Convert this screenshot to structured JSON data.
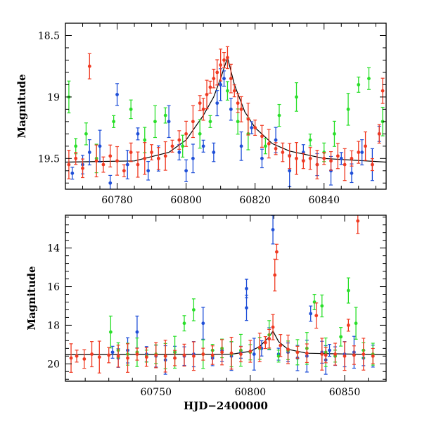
{
  "chart_data": [
    {
      "type": "scatter",
      "panel": "top",
      "title": "",
      "xlabel": "",
      "ylabel": "Magnitude",
      "xlim": [
        60765,
        60858
      ],
      "ylim": [
        18.4,
        19.75
      ],
      "y_inverted": true,
      "x_ticks": [
        60780,
        60800,
        60820,
        60840
      ],
      "y_ticks": [
        18.5,
        19,
        19.5
      ],
      "y_tick_labels": [
        "18.5",
        "19",
        "19.5"
      ],
      "grid": false,
      "legend": "none",
      "error_bars": true,
      "series": [
        {
          "color": "#1f4fd8",
          "points": [
            [
              60767,
              19.62
            ],
            [
              60770,
              19.55
            ],
            [
              60772,
              19.45
            ],
            [
              60775,
              19.4
            ],
            [
              60778,
              19.7
            ],
            [
              60780,
              18.98
            ],
            [
              60783,
              19.55
            ],
            [
              60786,
              19.3
            ],
            [
              60789,
              19.6
            ],
            [
              60792,
              19.5
            ],
            [
              60795,
              19.2
            ],
            [
              60798,
              19.45
            ],
            [
              60800,
              19.6
            ],
            [
              60802,
              19.5
            ],
            [
              60805,
              19.4
            ],
            [
              60808,
              19.45
            ],
            [
              60809,
              19.05
            ],
            [
              60810,
              18.9
            ],
            [
              60811,
              18.85
            ],
            [
              60813,
              19.1
            ],
            [
              60816,
              19.4
            ],
            [
              60819,
              19.25
            ],
            [
              60822,
              19.5
            ],
            [
              60826,
              19.35
            ],
            [
              60830,
              19.6
            ],
            [
              60834,
              19.45
            ],
            [
              60838,
              19.55
            ],
            [
              60842,
              19.6
            ],
            [
              60845,
              19.5
            ],
            [
              60848,
              19.62
            ],
            [
              60851,
              19.45
            ],
            [
              60854,
              19.55
            ],
            [
              60856,
              19.3
            ]
          ]
        },
        {
          "color": "#2adf2a",
          "points": [
            [
              60766,
              19.0
            ],
            [
              60768,
              19.4
            ],
            [
              60771,
              19.3
            ],
            [
              60774,
              19.5
            ],
            [
              60779,
              19.2
            ],
            [
              60784,
              19.1
            ],
            [
              60788,
              19.35
            ],
            [
              60791,
              19.2
            ],
            [
              60794,
              19.15
            ],
            [
              60799,
              19.4
            ],
            [
              60804,
              19.3
            ],
            [
              60807,
              19.2
            ],
            [
              60812,
              18.95
            ],
            [
              60815,
              19.2
            ],
            [
              60818,
              19.3
            ],
            [
              60823,
              19.4
            ],
            [
              60827,
              19.15
            ],
            [
              60832,
              19.0
            ],
            [
              60836,
              19.35
            ],
            [
              60840,
              19.45
            ],
            [
              60843,
              19.3
            ],
            [
              60847,
              19.1
            ],
            [
              60850,
              18.9
            ],
            [
              60853,
              18.85
            ],
            [
              60857,
              19.2
            ]
          ]
        },
        {
          "color": "#f03a22",
          "points": [
            [
              60766,
              19.55
            ],
            [
              60768,
              19.5
            ],
            [
              60770,
              19.58
            ],
            [
              60772,
              18.75
            ],
            [
              60774,
              19.52
            ],
            [
              60776,
              19.55
            ],
            [
              60778,
              19.48
            ],
            [
              60780,
              19.52
            ],
            [
              60782,
              19.6
            ],
            [
              60784,
              19.45
            ],
            [
              60786,
              19.55
            ],
            [
              60788,
              19.5
            ],
            [
              60790,
              19.45
            ],
            [
              60792,
              19.5
            ],
            [
              60794,
              19.48
            ],
            [
              60796,
              19.4
            ],
            [
              60798,
              19.35
            ],
            [
              60800,
              19.3
            ],
            [
              60802,
              19.2
            ],
            [
              60804,
              19.05
            ],
            [
              60805,
              19.1
            ],
            [
              60806,
              18.98
            ],
            [
              60807,
              18.92
            ],
            [
              60808,
              18.85
            ],
            [
              60809,
              18.8
            ],
            [
              60810,
              18.74
            ],
            [
              60811,
              18.7
            ],
            [
              60812,
              18.68
            ],
            [
              60813,
              18.85
            ],
            [
              60814,
              18.95
            ],
            [
              60815,
              19.05
            ],
            [
              60816,
              19.1
            ],
            [
              60818,
              19.18
            ],
            [
              60820,
              19.25
            ],
            [
              60822,
              19.32
            ],
            [
              60824,
              19.38
            ],
            [
              60826,
              19.42
            ],
            [
              60828,
              19.45
            ],
            [
              60830,
              19.48
            ],
            [
              60832,
              19.5
            ],
            [
              60834,
              19.52
            ],
            [
              60836,
              19.5
            ],
            [
              60838,
              19.55
            ],
            [
              60840,
              19.5
            ],
            [
              60842,
              19.52
            ],
            [
              60844,
              19.48
            ],
            [
              60846,
              19.55
            ],
            [
              60848,
              19.5
            ],
            [
              60850,
              19.45
            ],
            [
              60852,
              19.4
            ],
            [
              60854,
              19.55
            ],
            [
              60856,
              19.3
            ],
            [
              60857,
              18.95
            ]
          ]
        }
      ],
      "model_curve": [
        [
          60765,
          19.53
        ],
        [
          60785,
          19.52
        ],
        [
          60795,
          19.45
        ],
        [
          60800,
          19.35
        ],
        [
          60805,
          19.15
        ],
        [
          60808,
          19.0
        ],
        [
          60810,
          18.85
        ],
        [
          60812,
          18.68
        ],
        [
          60814,
          18.9
        ],
        [
          60817,
          19.12
        ],
        [
          60820,
          19.25
        ],
        [
          60825,
          19.38
        ],
        [
          60830,
          19.44
        ],
        [
          60840,
          19.5
        ],
        [
          60858,
          19.53
        ]
      ]
    },
    {
      "type": "scatter",
      "panel": "bottom",
      "title": "",
      "xlabel": "HJD−2400000",
      "ylabel": "Magnitude",
      "xlim": [
        60702,
        60872
      ],
      "ylim": [
        12.3,
        20.9
      ],
      "y_inverted": true,
      "x_ticks": [
        60750,
        60800,
        60850
      ],
      "y_ticks": [
        14,
        16,
        18,
        20
      ],
      "y_tick_labels": [
        "14",
        "16",
        "18",
        "20"
      ],
      "grid": false,
      "legend": "none",
      "error_bars": true,
      "series": [
        {
          "color": "#1f4fd8",
          "points": [
            [
              60727,
              19.4
            ],
            [
              60730,
              19.7
            ],
            [
              60735,
              19.3
            ],
            [
              60740,
              18.35
            ],
            [
              60745,
              19.5
            ],
            [
              60750,
              19.6
            ],
            [
              60755,
              19.8
            ],
            [
              60760,
              19.4
            ],
            [
              60765,
              19.6
            ],
            [
              60770,
              19.5
            ],
            [
              60775,
              17.9
            ],
            [
              60780,
              19.7
            ],
            [
              60785,
              19.3
            ],
            [
              60790,
              19.6
            ],
            [
              60795,
              19.4
            ],
            [
              60798,
              16.1
            ],
            [
              60798,
              17.1
            ],
            [
              60802,
              19.5
            ],
            [
              60806,
              19.2
            ],
            [
              60810,
              18.7
            ],
            [
              60812,
              13.05
            ],
            [
              60815,
              19.5
            ],
            [
              60820,
              19.4
            ],
            [
              60825,
              19.7
            ],
            [
              60830,
              19.6
            ],
            [
              60832,
              17.4
            ],
            [
              60838,
              19.4
            ],
            [
              60840,
              19.8
            ],
            [
              60842,
              19.3
            ],
            [
              60845,
              19.6
            ],
            [
              60850,
              19.5
            ],
            [
              60855,
              19.4
            ],
            [
              60860,
              19.7
            ],
            [
              60865,
              19.6
            ]
          ]
        },
        {
          "color": "#2adf2a",
          "points": [
            [
              60726,
              18.35
            ],
            [
              60730,
              19.3
            ],
            [
              60735,
              19.5
            ],
            [
              60740,
              19.4
            ],
            [
              60745,
              19.6
            ],
            [
              60750,
              19.5
            ],
            [
              60755,
              19.6
            ],
            [
              60760,
              19.4
            ],
            [
              60765,
              17.9
            ],
            [
              60770,
              17.2
            ],
            [
              60775,
              19.5
            ],
            [
              60780,
              19.3
            ],
            [
              60785,
              19.2
            ],
            [
              60790,
              19.5
            ],
            [
              60795,
              19.3
            ],
            [
              60800,
              19.4
            ],
            [
              60805,
              19.2
            ],
            [
              60810,
              18.5
            ],
            [
              60815,
              19.6
            ],
            [
              60820,
              19.3
            ],
            [
              60825,
              19.4
            ],
            [
              60830,
              19.2
            ],
            [
              60834,
              16.8
            ],
            [
              60838,
              17.0
            ],
            [
              60840,
              19.4
            ],
            [
              60845,
              19.6
            ],
            [
              60848,
              18.6
            ],
            [
              60852,
              16.2
            ],
            [
              60856,
              17.9
            ],
            [
              60860,
              19.3
            ],
            [
              60865,
              19.5
            ]
          ]
        },
        {
          "color": "#f03a22",
          "points": [
            [
              60705,
              19.7
            ],
            [
              60708,
              19.6
            ],
            [
              60712,
              19.75
            ],
            [
              60716,
              19.5
            ],
            [
              60720,
              19.65
            ],
            [
              60725,
              19.55
            ],
            [
              60730,
              19.6
            ],
            [
              60735,
              19.7
            ],
            [
              60740,
              19.5
            ],
            [
              60745,
              19.65
            ],
            [
              60750,
              19.55
            ],
            [
              60755,
              19.6
            ],
            [
              60760,
              19.7
            ],
            [
              60765,
              19.55
            ],
            [
              60770,
              19.6
            ],
            [
              60775,
              19.5
            ],
            [
              60780,
              19.55
            ],
            [
              60785,
              19.4
            ],
            [
              60790,
              19.45
            ],
            [
              60795,
              19.5
            ],
            [
              60800,
              19.35
            ],
            [
              60805,
              19.15
            ],
            [
              60808,
              18.9
            ],
            [
              60810,
              18.7
            ],
            [
              60812,
              18.1
            ],
            [
              60813,
              15.4
            ],
            [
              60814,
              14.2
            ],
            [
              60816,
              19.05
            ],
            [
              60820,
              19.25
            ],
            [
              60825,
              19.4
            ],
            [
              60830,
              19.45
            ],
            [
              60835,
              17.5
            ],
            [
              60838,
              19.5
            ],
            [
              60840,
              19.55
            ],
            [
              60845,
              19.5
            ],
            [
              60850,
              19.6
            ],
            [
              60852,
              18.0
            ],
            [
              60855,
              19.55
            ],
            [
              60857,
              12.6
            ],
            [
              60860,
              19.5
            ],
            [
              60865,
              19.6
            ]
          ]
        }
      ],
      "model_curve": [
        [
          60702,
          19.53
        ],
        [
          60790,
          19.5
        ],
        [
          60800,
          19.35
        ],
        [
          60805,
          19.1
        ],
        [
          60810,
          18.6
        ],
        [
          60812,
          18.3
        ],
        [
          60815,
          18.85
        ],
        [
          60820,
          19.25
        ],
        [
          60830,
          19.45
        ],
        [
          60872,
          19.53
        ]
      ]
    }
  ]
}
